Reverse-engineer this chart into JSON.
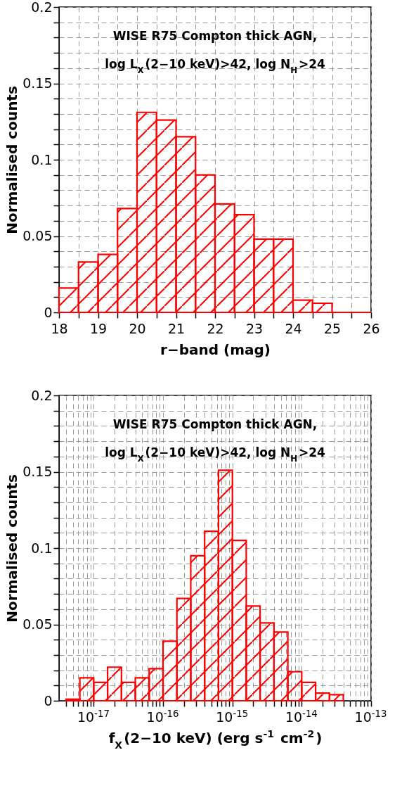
{
  "chart_data": [
    {
      "type": "histogram",
      "xlabel": "r−band (mag)",
      "ylabel": "Normalised counts",
      "annotations": [
        "WISE R75 Compton thick AGN,",
        "log L$_{X}$(2−10 keV)>42, log N$_{H}$>24"
      ],
      "bins": [
        18,
        18.5,
        19,
        19.5,
        20,
        20.5,
        21,
        21.5,
        22,
        22.5,
        23,
        23.5,
        24,
        24.5,
        25,
        25.5,
        26
      ],
      "values": [
        0.016,
        0.033,
        0.038,
        0.068,
        0.131,
        0.126,
        0.115,
        0.09,
        0.071,
        0.064,
        0.048,
        0.048,
        0.008,
        0.006,
        0,
        0
      ],
      "color": "#ff0000",
      "xlim": [
        18,
        26
      ],
      "xticks": [
        18,
        {
          "value": 18.5,
          "label": null
        },
        19,
        {
          "value": 19.5,
          "label": null
        },
        20,
        {
          "value": 20.5,
          "label": null
        },
        21,
        {
          "value": 21.5,
          "label": null
        },
        22,
        {
          "value": 22.5,
          "label": null
        },
        23,
        {
          "value": 23.5,
          "label": null
        },
        24,
        {
          "value": 24.5,
          "label": null
        },
        25,
        {
          "value": 25.5,
          "label": null
        },
        26
      ],
      "ylim": [
        0,
        0.2
      ],
      "yticks": [
        0,
        {
          "value": 0.01,
          "label": null
        },
        {
          "value": 0.02,
          "label": null
        },
        {
          "value": 0.03,
          "label": null
        },
        {
          "value": 0.04,
          "label": null
        },
        0.05,
        {
          "value": 0.06,
          "label": null
        },
        {
          "value": 0.07,
          "label": null
        },
        {
          "value": 0.08,
          "label": null
        },
        {
          "value": 0.09,
          "label": null
        },
        0.1,
        {
          "value": 0.11,
          "label": null
        },
        {
          "value": 0.12,
          "label": null
        },
        {
          "value": 0.13,
          "label": null
        },
        {
          "value": 0.14,
          "label": null
        },
        0.15,
        {
          "value": 0.16,
          "label": null
        },
        {
          "value": 0.17,
          "label": null
        },
        {
          "value": 0.18,
          "label": null
        },
        {
          "value": 0.19,
          "label": null
        },
        0.2
      ],
      "grid": true
    },
    {
      "type": "histogram",
      "xlabel": "f$_{X}$(2−10 keV) (erg s$^{-1}$ cm$^{-2}$)",
      "ylabel": "Normalised counts",
      "annotations": [
        "WISE R75 Compton thick AGN,",
        "log L$_{X}$(2−10 keV)>42, log N$_{H}$>24"
      ],
      "log": "x",
      "bins": [
        3.981e-18,
        6.31e-18,
        1e-17,
        1.585e-17,
        2.512e-17,
        3.981e-17,
        6.31e-17,
        1e-16,
        1.585e-16,
        2.512e-16,
        3.981e-16,
        6.31e-16,
        1e-15,
        1.585e-15,
        2.512e-15,
        3.981e-15,
        6.31e-15,
        1e-14,
        1.585e-14,
        2.512e-14,
        3.981e-14
      ],
      "values": [
        0.001,
        0.015,
        0.012,
        0.022,
        0.012,
        0.015,
        0.021,
        0.039,
        0.067,
        0.095,
        0.111,
        0.151,
        0.105,
        0.062,
        0.051,
        0.045,
        0.019,
        0.012,
        0.005,
        0.004
      ],
      "color": "#ff0000",
      "xlim": [
        3.162e-18,
        1e-13
      ],
      "xticks": [
        {
          "value": 4e-18,
          "label": null
        },
        {
          "value": 5e-18,
          "label": null
        },
        {
          "value": 6e-18,
          "label": null
        },
        {
          "value": 7e-18,
          "label": null
        },
        {
          "value": 8e-18,
          "label": null
        },
        {
          "value": 9e-18,
          "label": null
        },
        {
          "value": 1e-17,
          "label": "10$^{-17}$"
        },
        {
          "value": 2e-17,
          "label": null
        },
        {
          "value": 3e-17,
          "label": null
        },
        {
          "value": 4e-17,
          "label": null
        },
        {
          "value": 5e-17,
          "label": null
        },
        {
          "value": 6e-17,
          "label": null
        },
        {
          "value": 7e-17,
          "label": null
        },
        {
          "value": 8e-17,
          "label": null
        },
        {
          "value": 9e-17,
          "label": null
        },
        {
          "value": 1e-16,
          "label": "10$^{-16}$"
        },
        {
          "value": 2e-16,
          "label": null
        },
        {
          "value": 3e-16,
          "label": null
        },
        {
          "value": 4e-16,
          "label": null
        },
        {
          "value": 5e-16,
          "label": null
        },
        {
          "value": 6e-16,
          "label": null
        },
        {
          "value": 7e-16,
          "label": null
        },
        {
          "value": 8e-16,
          "label": null
        },
        {
          "value": 9e-16,
          "label": null
        },
        {
          "value": 1e-15,
          "label": "10$^{-15}$"
        },
        {
          "value": 2e-15,
          "label": null
        },
        {
          "value": 3e-15,
          "label": null
        },
        {
          "value": 4e-15,
          "label": null
        },
        {
          "value": 5e-15,
          "label": null
        },
        {
          "value": 6e-15,
          "label": null
        },
        {
          "value": 7e-15,
          "label": null
        },
        {
          "value": 8e-15,
          "label": null
        },
        {
          "value": 9e-15,
          "label": null
        },
        {
          "value": 1e-14,
          "label": "10$^{-14}$"
        },
        {
          "value": 2e-14,
          "label": null
        },
        {
          "value": 3e-14,
          "label": null
        },
        {
          "value": 4e-14,
          "label": null
        },
        {
          "value": 5e-14,
          "label": null
        },
        {
          "value": 6e-14,
          "label": null
        },
        {
          "value": 7e-14,
          "label": null
        },
        {
          "value": 8e-14,
          "label": null
        },
        {
          "value": 9e-14,
          "label": null
        },
        {
          "value": 1e-13,
          "label": "10$^{-13}$"
        }
      ],
      "ylim": [
        0,
        0.2
      ],
      "yticks": [
        0,
        {
          "value": 0.01,
          "label": null
        },
        {
          "value": 0.02,
          "label": null
        },
        {
          "value": 0.03,
          "label": null
        },
        {
          "value": 0.04,
          "label": null
        },
        0.05,
        {
          "value": 0.06,
          "label": null
        },
        {
          "value": 0.07,
          "label": null
        },
        {
          "value": 0.08,
          "label": null
        },
        {
          "value": 0.09,
          "label": null
        },
        0.1,
        {
          "value": 0.11,
          "label": null
        },
        {
          "value": 0.12,
          "label": null
        },
        {
          "value": 0.13,
          "label": null
        },
        {
          "value": 0.14,
          "label": null
        },
        0.15,
        {
          "value": 0.16,
          "label": null
        },
        {
          "value": 0.17,
          "label": null
        },
        {
          "value": 0.18,
          "label": null
        },
        {
          "value": 0.19,
          "label": null
        },
        0.2
      ],
      "grid": true
    }
  ]
}
